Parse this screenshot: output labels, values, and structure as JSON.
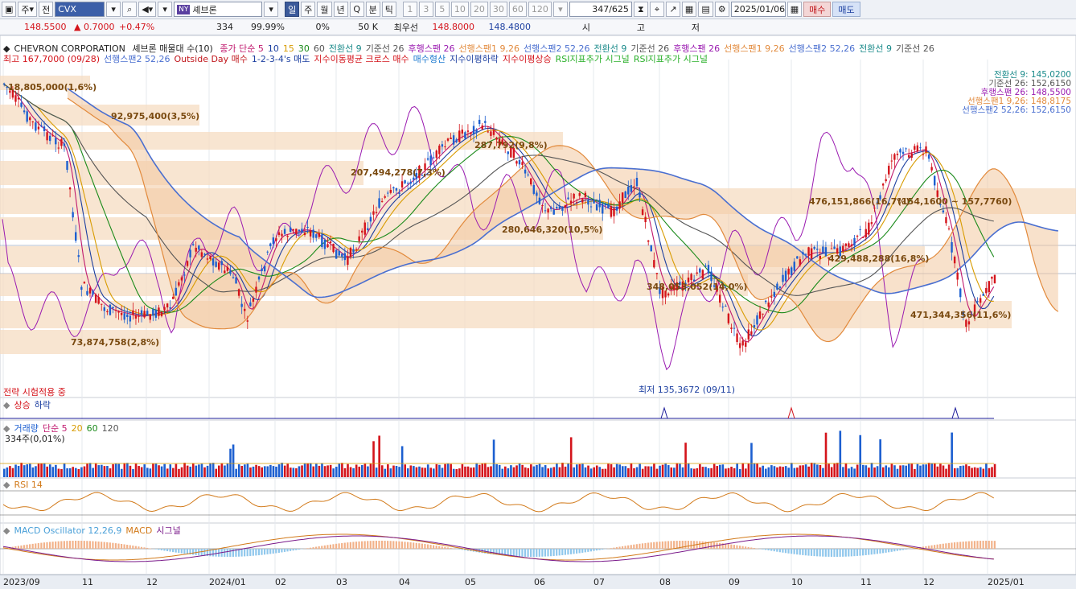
{
  "toolbar": {
    "market_label": "주",
    "all_label": "전",
    "code": "CVX",
    "exchange_badge": "NY",
    "name": "셰브론",
    "period_tabs": [
      "일",
      "주",
      "월",
      "년",
      "Q",
      "분",
      "틱"
    ],
    "period_active": "일",
    "n_buttons": [
      "1",
      "3",
      "5",
      "10",
      "20",
      "30",
      "60",
      "120"
    ],
    "count": "347",
    "count_total": "/625",
    "date": "2025/01/06",
    "buy_label": "매수",
    "sell_label": "매도"
  },
  "infobar": {
    "price": "148.5500",
    "change": "0.7000",
    "change_pct": "+0.47%",
    "volume": "334",
    "pct2": "99.99%",
    "pct3": "0%",
    "qty": "50 K",
    "priority_label": "최우선",
    "ask": "148.8000",
    "bid": "148.4800",
    "open_label": "시",
    "high_label": "고",
    "low_label": "저"
  },
  "legend1": {
    "title": "CHEVRON CORPORATION",
    "subtitle": "셰브론 매물대 수(10)",
    "items": [
      {
        "text": "종가 단순 5",
        "color": "#c0196e"
      },
      {
        "text": "10",
        "color": "#1c3fa0"
      },
      {
        "text": "15",
        "color": "#d89b00"
      },
      {
        "text": "30",
        "color": "#1a8a1a"
      },
      {
        "text": "60",
        "color": "#555555"
      },
      {
        "text": "전환선 9",
        "color": "#1a8a8a"
      },
      {
        "text": "기준선 26",
        "color": "#555555"
      },
      {
        "text": "후행스팬 26",
        "color": "#9a1ab0"
      },
      {
        "text": "선행스팬1 9,26",
        "color": "#e28a3c"
      },
      {
        "text": "선행스팬2 52,26",
        "color": "#4a6fd0"
      },
      {
        "text": "전환선 9",
        "color": "#1a8a8a"
      },
      {
        "text": "기준선 26",
        "color": "#555555"
      },
      {
        "text": "후행스팬 26",
        "color": "#9a1ab0"
      },
      {
        "text": "선행스팬1 9,26",
        "color": "#e28a3c"
      },
      {
        "text": "선행스팬2 52,26",
        "color": "#4a6fd0"
      },
      {
        "text": "전환선 9",
        "color": "#1a8a8a"
      },
      {
        "text": "기준선 26",
        "color": "#555555"
      }
    ]
  },
  "legend2": {
    "items": [
      {
        "text": "최고 167,7000 (09/28)",
        "color": "#d4141b"
      },
      {
        "text": "선행스팬2 52,26",
        "color": "#4a6fd0"
      },
      {
        "text": "Outside Day 매수",
        "color": "#c0161b"
      },
      {
        "text": "1-2-3-4's 매도",
        "color": "#1c3fa0"
      },
      {
        "text": "지수이동평균 크로스 매수",
        "color": "#d4141b"
      },
      {
        "text": "매수형산",
        "color": "#1c7ad0"
      },
      {
        "text": "지수이평하락",
        "color": "#1c3fa0"
      },
      {
        "text": "지수이평상승",
        "color": "#d4141b"
      },
      {
        "text": "RSI지표추가 시그널",
        "color": "#2ab02a"
      },
      {
        "text": "RSI지표추가 시그널",
        "color": "#2ab02a"
      }
    ]
  },
  "right_legend": [
    {
      "text": "전환선 9: 145,0200",
      "color": "#1a8a8a"
    },
    {
      "text": "기준선 26: 152,6150",
      "color": "#555555"
    },
    {
      "text": "후행스팬 26: 148,5500",
      "color": "#9a1ab0"
    },
    {
      "text": "선행스팬1 9,26: 148,8175",
      "color": "#e28a3c"
    },
    {
      "text": "선행스팬2 52,26: 152,6150",
      "color": "#4a6fd0"
    }
  ],
  "volume_profile": [
    {
      "label": "18,805,000(1,6%)"
    },
    {
      "label": "92,975,400(3,5%)"
    },
    {
      "label": "207,494,278(7,3%)"
    },
    {
      "label": "287,792(9,8%)"
    },
    {
      "label": "476,151,866(16,7%)"
    },
    {
      "label": "280,646,320(10,5%)"
    },
    {
      "label": "429,488,288(16,8%)"
    },
    {
      "label": "348,053,052(14,0%)"
    },
    {
      "label": "471,344,356(11,6%)"
    },
    {
      "label": "73,874,758(2,8%)"
    }
  ],
  "price_range_label": "(154,1600 ~ 157,7760)",
  "low_marker": "최저 135,3672 (09/11)",
  "strategy_label": "전략 시험적용 중",
  "signal_panel": {
    "up": "상승",
    "down": "하락"
  },
  "volume_panel": {
    "title": "거래량",
    "avg_label": "단순 5",
    "n20": "20",
    "n60": "60",
    "n120": "120",
    "last": "334주(0,01%)"
  },
  "rsi_panel": {
    "title": "RSI 14"
  },
  "macd_panel": {
    "title": "MACD Oscillator 12,26,9",
    "macd": "MACD",
    "signal": "시그널"
  },
  "xaxis": [
    "2023/09",
    "11",
    "12",
    "2024/01",
    "02",
    "03",
    "04",
    "05",
    "06",
    "07",
    "08",
    "09",
    "10",
    "11",
    "12",
    "2025/01"
  ],
  "colors": {
    "up": "#d4141b",
    "down": "#1c5fd0",
    "cloud": "#f2c9a0",
    "profile": "#f5dcc2"
  }
}
